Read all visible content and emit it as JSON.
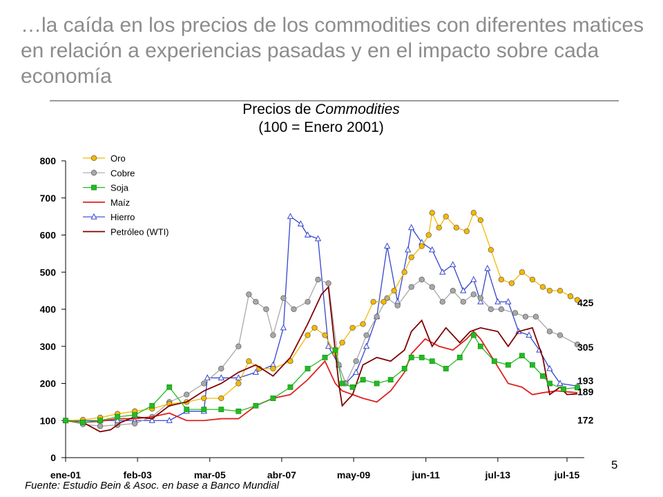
{
  "slide": {
    "headline": "…la caída en los precios de los commodities con diferentes matices en relación a experiencias pasadas y en el impacto sobre cada economía",
    "page_number": "5",
    "source": "Fuente: Estudio Bein & Asoc. en  base a Banco Mundial"
  },
  "chart_data": {
    "type": "line",
    "title_line1_prefix": "Precios de ",
    "title_line1_italic": "Commodities",
    "title_line2": "(100 = Enero 2001)",
    "xlabel": "",
    "ylabel": "",
    "ylim": [
      0,
      800
    ],
    "xlim": [
      2001.0,
      2016.0
    ],
    "y_ticks": [
      0,
      100,
      200,
      300,
      400,
      500,
      600,
      700,
      800
    ],
    "x_ticks": [
      {
        "label": "ene-01",
        "x": 2001.0
      },
      {
        "label": "feb-03",
        "x": 2003.08
      },
      {
        "label": "mar-05",
        "x": 2005.17
      },
      {
        "label": "abr-07",
        "x": 2007.25
      },
      {
        "label": "may-09",
        "x": 2009.33
      },
      {
        "label": "jun-11",
        "x": 2011.42
      },
      {
        "label": "jul-13",
        "x": 2013.5
      },
      {
        "label": "jul-15",
        "x": 2015.5
      }
    ],
    "grid": false,
    "legend_position": "top-left",
    "series": [
      {
        "name": "Oro",
        "color": "#f5b800",
        "marker": "circle",
        "points": [
          [
            2001.0,
            100
          ],
          [
            2001.5,
            102
          ],
          [
            2002.0,
            108
          ],
          [
            2002.5,
            118
          ],
          [
            2003.0,
            125
          ],
          [
            2003.5,
            132
          ],
          [
            2004.0,
            145
          ],
          [
            2004.5,
            150
          ],
          [
            2005.0,
            160
          ],
          [
            2005.5,
            160
          ],
          [
            2006.0,
            200
          ],
          [
            2006.3,
            260
          ],
          [
            2006.6,
            240
          ],
          [
            2007.0,
            240
          ],
          [
            2007.5,
            260
          ],
          [
            2008.0,
            330
          ],
          [
            2008.2,
            350
          ],
          [
            2008.5,
            330
          ],
          [
            2008.8,
            280
          ],
          [
            2009.0,
            310
          ],
          [
            2009.3,
            350
          ],
          [
            2009.6,
            360
          ],
          [
            2009.9,
            420
          ],
          [
            2010.2,
            420
          ],
          [
            2010.5,
            450
          ],
          [
            2010.8,
            500
          ],
          [
            2011.0,
            540
          ],
          [
            2011.3,
            570
          ],
          [
            2011.5,
            600
          ],
          [
            2011.6,
            660
          ],
          [
            2011.8,
            620
          ],
          [
            2012.0,
            650
          ],
          [
            2012.3,
            620
          ],
          [
            2012.6,
            610
          ],
          [
            2012.8,
            660
          ],
          [
            2013.0,
            640
          ],
          [
            2013.3,
            560
          ],
          [
            2013.6,
            480
          ],
          [
            2013.9,
            470
          ],
          [
            2014.2,
            500
          ],
          [
            2014.5,
            480
          ],
          [
            2014.8,
            460
          ],
          [
            2015.0,
            450
          ],
          [
            2015.3,
            450
          ],
          [
            2015.6,
            435
          ],
          [
            2015.8,
            425
          ]
        ]
      },
      {
        "name": "Cobre",
        "color": "#a8a8a8",
        "marker": "circle",
        "points": [
          [
            2001.0,
            100
          ],
          [
            2001.5,
            90
          ],
          [
            2002.0,
            85
          ],
          [
            2002.5,
            88
          ],
          [
            2003.0,
            92
          ],
          [
            2003.5,
            110
          ],
          [
            2004.0,
            150
          ],
          [
            2004.5,
            170
          ],
          [
            2005.0,
            200
          ],
          [
            2005.5,
            240
          ],
          [
            2006.0,
            300
          ],
          [
            2006.3,
            440
          ],
          [
            2006.5,
            420
          ],
          [
            2006.8,
            400
          ],
          [
            2007.0,
            330
          ],
          [
            2007.3,
            430
          ],
          [
            2007.6,
            400
          ],
          [
            2008.0,
            420
          ],
          [
            2008.3,
            480
          ],
          [
            2008.6,
            470
          ],
          [
            2008.9,
            250
          ],
          [
            2009.1,
            200
          ],
          [
            2009.4,
            260
          ],
          [
            2009.7,
            330
          ],
          [
            2010.0,
            380
          ],
          [
            2010.3,
            430
          ],
          [
            2010.6,
            410
          ],
          [
            2011.0,
            460
          ],
          [
            2011.3,
            480
          ],
          [
            2011.6,
            460
          ],
          [
            2011.9,
            420
          ],
          [
            2012.2,
            450
          ],
          [
            2012.5,
            420
          ],
          [
            2012.8,
            440
          ],
          [
            2013.0,
            430
          ],
          [
            2013.3,
            400
          ],
          [
            2013.6,
            400
          ],
          [
            2014.0,
            390
          ],
          [
            2014.3,
            380
          ],
          [
            2014.6,
            380
          ],
          [
            2015.0,
            340
          ],
          [
            2015.3,
            330
          ],
          [
            2015.8,
            305
          ]
        ]
      },
      {
        "name": "Soja",
        "color": "#22bb22",
        "marker": "square",
        "points": [
          [
            2001.0,
            100
          ],
          [
            2001.5,
            95
          ],
          [
            2002.0,
            100
          ],
          [
            2002.5,
            110
          ],
          [
            2003.0,
            115
          ],
          [
            2003.5,
            140
          ],
          [
            2004.0,
            190
          ],
          [
            2004.5,
            130
          ],
          [
            2005.0,
            130
          ],
          [
            2005.5,
            130
          ],
          [
            2006.0,
            125
          ],
          [
            2006.5,
            140
          ],
          [
            2007.0,
            160
          ],
          [
            2007.5,
            190
          ],
          [
            2008.0,
            240
          ],
          [
            2008.5,
            270
          ],
          [
            2008.8,
            290
          ],
          [
            2009.0,
            200
          ],
          [
            2009.3,
            190
          ],
          [
            2009.6,
            210
          ],
          [
            2010.0,
            200
          ],
          [
            2010.4,
            210
          ],
          [
            2010.8,
            240
          ],
          [
            2011.0,
            270
          ],
          [
            2011.3,
            270
          ],
          [
            2011.6,
            260
          ],
          [
            2012.0,
            240
          ],
          [
            2012.4,
            270
          ],
          [
            2012.8,
            330
          ],
          [
            2013.0,
            300
          ],
          [
            2013.4,
            260
          ],
          [
            2013.8,
            250
          ],
          [
            2014.2,
            275
          ],
          [
            2014.5,
            250
          ],
          [
            2014.8,
            220
          ],
          [
            2015.0,
            200
          ],
          [
            2015.4,
            185
          ],
          [
            2015.8,
            189
          ]
        ]
      },
      {
        "name": "Maíz",
        "color": "#e02020",
        "marker": "none",
        "points": [
          [
            2001.0,
            100
          ],
          [
            2001.5,
            95
          ],
          [
            2002.0,
            98
          ],
          [
            2002.5,
            105
          ],
          [
            2003.0,
            105
          ],
          [
            2003.5,
            110
          ],
          [
            2004.0,
            120
          ],
          [
            2004.5,
            100
          ],
          [
            2005.0,
            100
          ],
          [
            2005.5,
            105
          ],
          [
            2006.0,
            105
          ],
          [
            2006.5,
            140
          ],
          [
            2007.0,
            160
          ],
          [
            2007.5,
            170
          ],
          [
            2008.0,
            210
          ],
          [
            2008.5,
            260
          ],
          [
            2008.8,
            200
          ],
          [
            2009.0,
            180
          ],
          [
            2009.3,
            170
          ],
          [
            2009.6,
            160
          ],
          [
            2010.0,
            150
          ],
          [
            2010.4,
            180
          ],
          [
            2010.8,
            230
          ],
          [
            2011.0,
            280
          ],
          [
            2011.4,
            320
          ],
          [
            2011.8,
            300
          ],
          [
            2012.2,
            290
          ],
          [
            2012.6,
            320
          ],
          [
            2012.8,
            340
          ],
          [
            2013.0,
            320
          ],
          [
            2013.4,
            260
          ],
          [
            2013.8,
            200
          ],
          [
            2014.2,
            190
          ],
          [
            2014.5,
            170
          ],
          [
            2014.8,
            175
          ],
          [
            2015.2,
            180
          ],
          [
            2015.8,
            175
          ]
        ]
      },
      {
        "name": "Hierro",
        "color": "#3344cc",
        "marker": "triangle",
        "points": [
          [
            2001.0,
            100
          ],
          [
            2001.5,
            100
          ],
          [
            2002.0,
            100
          ],
          [
            2002.5,
            100
          ],
          [
            2003.0,
            100
          ],
          [
            2003.5,
            100
          ],
          [
            2004.0,
            100
          ],
          [
            2004.5,
            125
          ],
          [
            2005.0,
            125
          ],
          [
            2005.1,
            215
          ],
          [
            2005.5,
            215
          ],
          [
            2006.0,
            215
          ],
          [
            2006.5,
            230
          ],
          [
            2007.0,
            250
          ],
          [
            2007.3,
            350
          ],
          [
            2007.5,
            650
          ],
          [
            2007.8,
            630
          ],
          [
            2008.0,
            600
          ],
          [
            2008.3,
            590
          ],
          [
            2008.6,
            300
          ],
          [
            2008.9,
            250
          ],
          [
            2009.1,
            200
          ],
          [
            2009.4,
            230
          ],
          [
            2009.7,
            300
          ],
          [
            2010.0,
            380
          ],
          [
            2010.3,
            570
          ],
          [
            2010.6,
            420
          ],
          [
            2010.9,
            560
          ],
          [
            2011.0,
            620
          ],
          [
            2011.3,
            580
          ],
          [
            2011.6,
            560
          ],
          [
            2011.9,
            500
          ],
          [
            2012.2,
            520
          ],
          [
            2012.5,
            450
          ],
          [
            2012.8,
            480
          ],
          [
            2013.0,
            420
          ],
          [
            2013.2,
            510
          ],
          [
            2013.5,
            420
          ],
          [
            2013.8,
            420
          ],
          [
            2014.1,
            340
          ],
          [
            2014.4,
            330
          ],
          [
            2014.7,
            290
          ],
          [
            2015.0,
            240
          ],
          [
            2015.3,
            200
          ],
          [
            2015.8,
            193
          ]
        ]
      },
      {
        "name": "Petróleo (WTI)",
        "color": "#800000",
        "marker": "none",
        "points": [
          [
            2001.0,
            100
          ],
          [
            2001.5,
            95
          ],
          [
            2002.0,
            70
          ],
          [
            2002.3,
            75
          ],
          [
            2002.6,
            95
          ],
          [
            2003.0,
            110
          ],
          [
            2003.5,
            105
          ],
          [
            2004.0,
            140
          ],
          [
            2004.5,
            150
          ],
          [
            2005.0,
            180
          ],
          [
            2005.5,
            200
          ],
          [
            2006.0,
            230
          ],
          [
            2006.5,
            250
          ],
          [
            2007.0,
            220
          ],
          [
            2007.5,
            270
          ],
          [
            2008.0,
            360
          ],
          [
            2008.4,
            440
          ],
          [
            2008.6,
            460
          ],
          [
            2008.9,
            200
          ],
          [
            2009.0,
            140
          ],
          [
            2009.3,
            170
          ],
          [
            2009.6,
            250
          ],
          [
            2010.0,
            270
          ],
          [
            2010.4,
            260
          ],
          [
            2010.8,
            290
          ],
          [
            2011.0,
            340
          ],
          [
            2011.3,
            370
          ],
          [
            2011.6,
            300
          ],
          [
            2012.0,
            350
          ],
          [
            2012.4,
            310
          ],
          [
            2012.7,
            340
          ],
          [
            2013.0,
            350
          ],
          [
            2013.5,
            340
          ],
          [
            2013.8,
            300
          ],
          [
            2014.1,
            340
          ],
          [
            2014.5,
            350
          ],
          [
            2014.8,
            270
          ],
          [
            2015.0,
            170
          ],
          [
            2015.3,
            190
          ],
          [
            2015.5,
            170
          ],
          [
            2015.8,
            172
          ]
        ]
      }
    ],
    "end_labels": [
      {
        "text": "425",
        "series": "Oro",
        "value": 425
      },
      {
        "text": "305",
        "series": "Cobre",
        "value": 305
      },
      {
        "text": "193",
        "series": "Hierro",
        "value": 193
      },
      {
        "text": "189",
        "series": "Soja",
        "value": 189
      },
      {
        "text": "172",
        "series": "Petróleo (WTI)",
        "value": 172
      }
    ]
  }
}
